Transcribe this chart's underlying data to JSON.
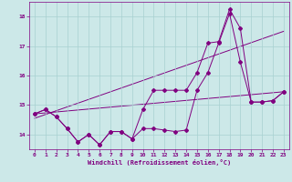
{
  "xlabel": "Windchill (Refroidissement éolien,°C)",
  "background_color": "#cce8e8",
  "line_color": "#800080",
  "xlim": [
    -0.5,
    23.5
  ],
  "ylim": [
    13.5,
    18.5
  ],
  "yticks": [
    14,
    15,
    16,
    17,
    18
  ],
  "xticks": [
    0,
    1,
    2,
    3,
    4,
    5,
    6,
    7,
    8,
    9,
    10,
    11,
    12,
    13,
    14,
    15,
    16,
    17,
    18,
    19,
    20,
    21,
    22,
    23
  ],
  "series1_x": [
    0,
    1,
    2,
    3,
    4,
    5,
    6,
    7,
    8,
    9,
    10,
    11,
    12,
    13,
    14,
    15,
    16,
    17,
    18,
    19,
    20,
    21,
    22,
    23
  ],
  "series1_y": [
    14.7,
    14.85,
    14.6,
    14.2,
    13.75,
    14.0,
    13.65,
    14.1,
    14.1,
    13.85,
    14.85,
    15.5,
    15.5,
    15.5,
    15.5,
    16.1,
    17.1,
    17.15,
    18.25,
    17.6,
    15.1,
    15.1,
    15.15,
    15.45
  ],
  "series2_x": [
    0,
    1,
    2,
    3,
    4,
    5,
    6,
    7,
    8,
    9,
    10,
    11,
    12,
    13,
    14,
    15,
    16,
    17,
    18,
    19,
    20,
    21,
    22,
    23
  ],
  "series2_y": [
    14.7,
    14.85,
    14.6,
    14.2,
    13.75,
    14.0,
    13.65,
    14.1,
    14.1,
    13.85,
    14.2,
    14.2,
    14.15,
    14.1,
    14.15,
    15.5,
    16.1,
    17.1,
    18.1,
    16.45,
    15.1,
    15.1,
    15.15,
    15.45
  ],
  "series3_x": [
    0,
    23
  ],
  "series3_y": [
    14.7,
    15.45
  ],
  "series4_x": [
    0,
    23
  ],
  "series4_y": [
    14.55,
    17.5
  ]
}
